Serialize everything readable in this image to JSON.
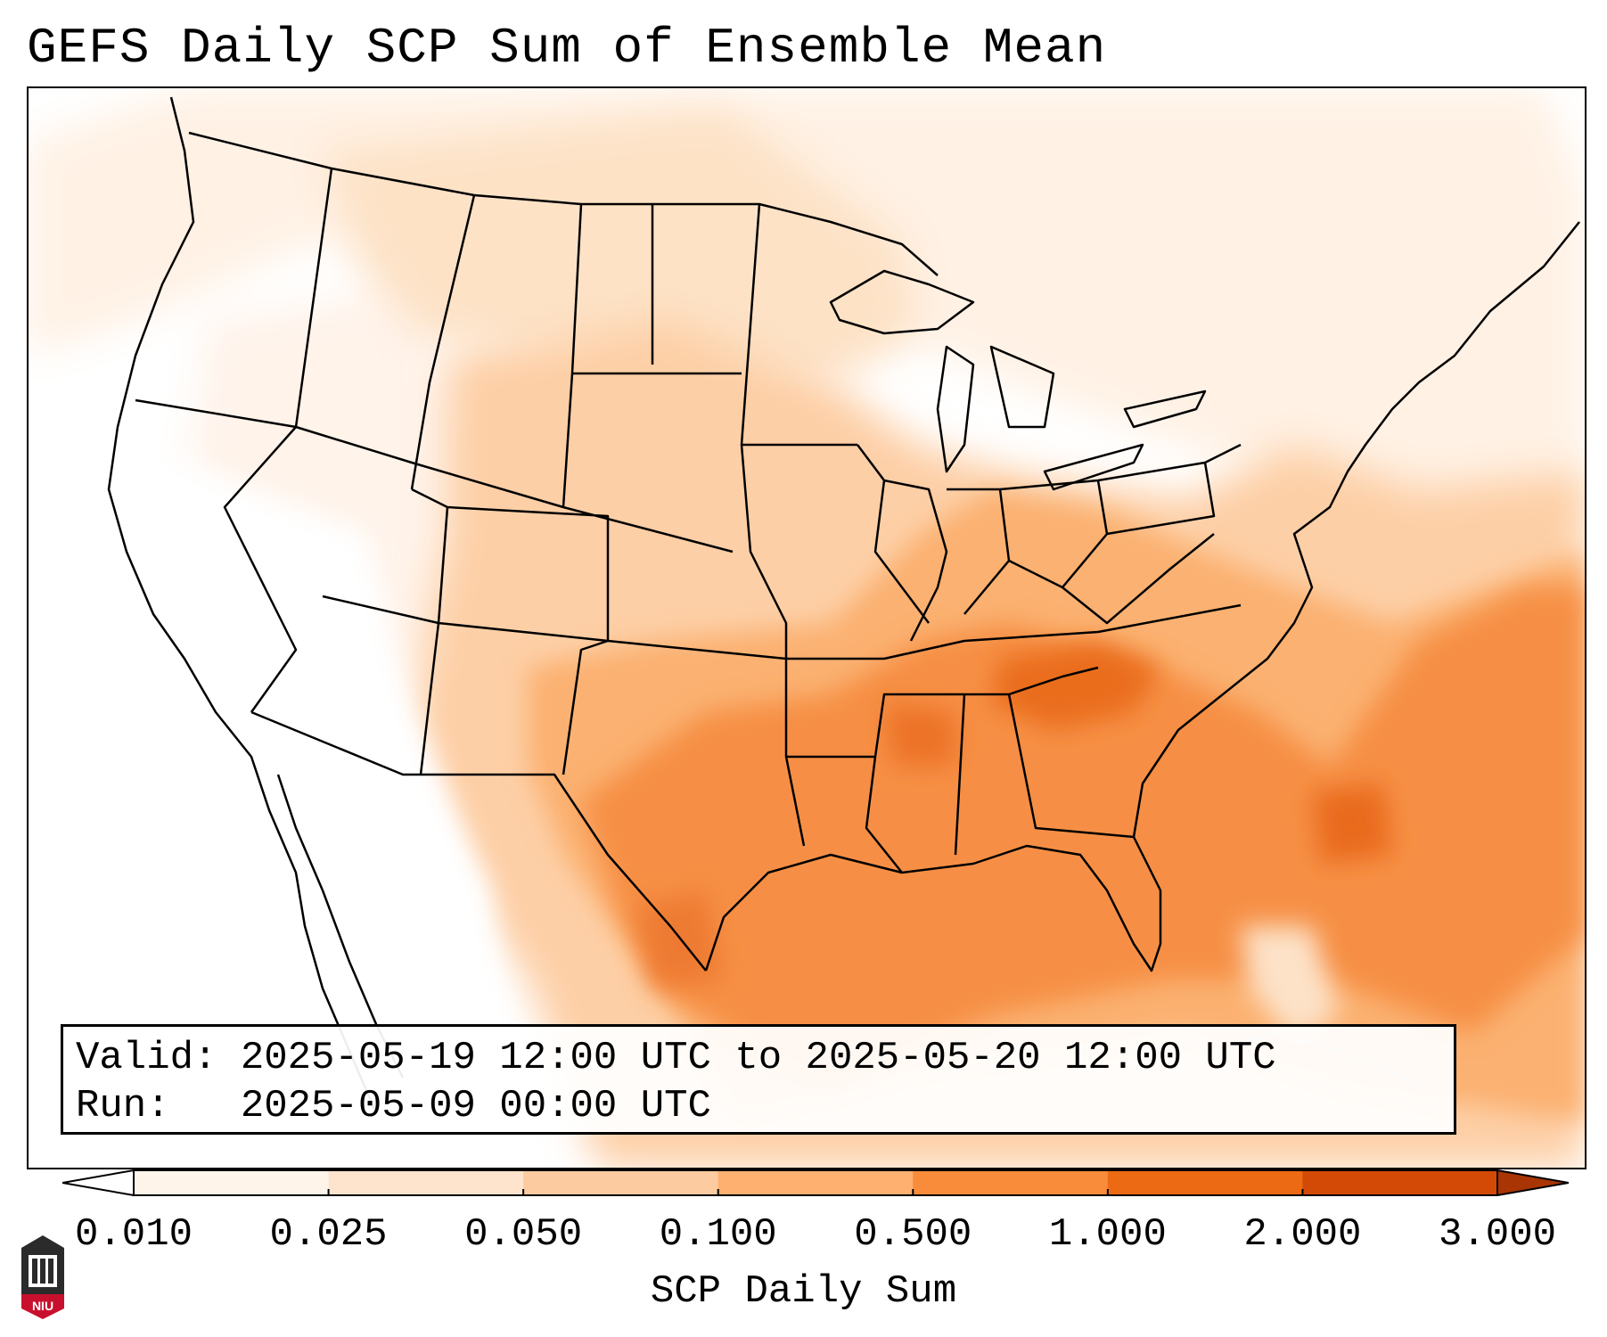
{
  "title": "GEFS Daily SCP Sum of Ensemble Mean",
  "info": {
    "valid_label": "Valid:",
    "valid_value": "2025-05-19 12:00 UTC to 2025-05-20 12:00 UTC",
    "run_label": "Run:",
    "run_value": "2025-05-09 00:00 UTC"
  },
  "colorbar": {
    "label": "SCP Daily Sum",
    "ticks": [
      "0.010",
      "0.025",
      "0.050",
      "0.100",
      "0.500",
      "1.000",
      "2.000",
      "3.000"
    ],
    "colors": [
      "#fff4ea",
      "#fee4cd",
      "#fdcba0",
      "#fdb070",
      "#f98c3a",
      "#ed6a14",
      "#d34a06",
      "#a83503"
    ]
  },
  "logo": {
    "text": "NIU"
  }
}
